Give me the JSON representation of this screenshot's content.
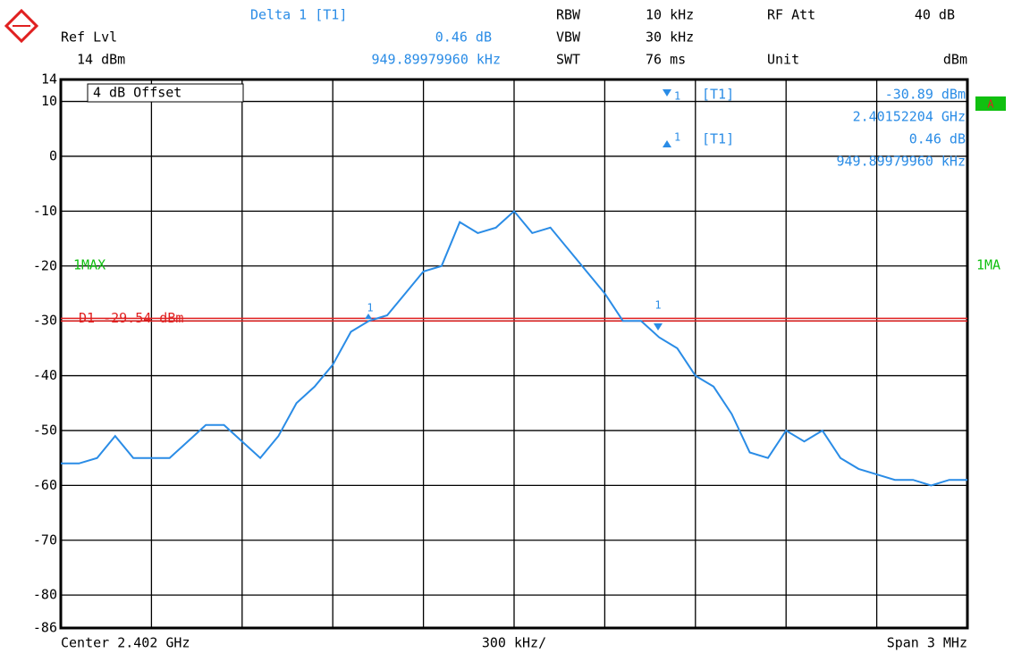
{
  "header": {
    "delta_title": "Delta 1 [T1]",
    "delta_value": "0.46 dB",
    "delta_freq": "949.89979960 kHz",
    "ref_label": "Ref Lvl",
    "ref_value": "14 dBm",
    "rbw_label": "RBW",
    "rbw_value": "10 kHz",
    "vbw_label": "VBW",
    "vbw_value": "30 kHz",
    "swt_label": "SWT",
    "swt_value": "76 ms",
    "rfatt_label": "RF Att",
    "rfatt_value": "40 dB",
    "unit_label": "Unit",
    "unit_value": "dBm"
  },
  "marker_info": {
    "m1_num": "1",
    "m1_tag": "[T1]",
    "m1_level": "-30.89 dBm",
    "m1_freq": "2.40152204 GHz",
    "d1_num": "1",
    "d1_tag": "[T1]",
    "d1_level": "0.46 dB",
    "d1_freq": "949.89979960 kHz"
  },
  "side": {
    "offset": "4 dB Offset",
    "trace_left": "1MAX",
    "trace_right": "1MA",
    "screen": "A",
    "marker_a": "1",
    "marker_b": "1"
  },
  "footer": {
    "center": "Center 2.402 GHz",
    "div": "300 kHz/",
    "span": "Span 3 MHz"
  },
  "chart_data": {
    "type": "line",
    "color": "#2a8ce6",
    "grid": true,
    "values": [
      -56,
      -56,
      -55,
      -51,
      -55,
      -55,
      -55,
      -52,
      -49,
      -49,
      -52,
      -55,
      -51,
      -45,
      -42,
      -38,
      -32,
      -30,
      -29,
      -25,
      -21,
      -20,
      -12,
      -14,
      -13,
      -10,
      -14,
      -13,
      -17,
      -21,
      -25,
      -30,
      -30,
      -33,
      -35,
      -40,
      -42,
      -47,
      -54,
      -55,
      -50,
      -52,
      -50,
      -55,
      -57,
      -58,
      -59,
      -59,
      -60,
      -59,
      -59
    ],
    "ylim": [
      -86,
      14
    ],
    "yticks": [
      14,
      10,
      0,
      -10,
      -20,
      -30,
      -40,
      -50,
      -60,
      -70,
      -80,
      -86
    ],
    "display_line": {
      "value": -29.54,
      "label": "D1 -29.54 dBm",
      "color": "#e02020"
    }
  }
}
